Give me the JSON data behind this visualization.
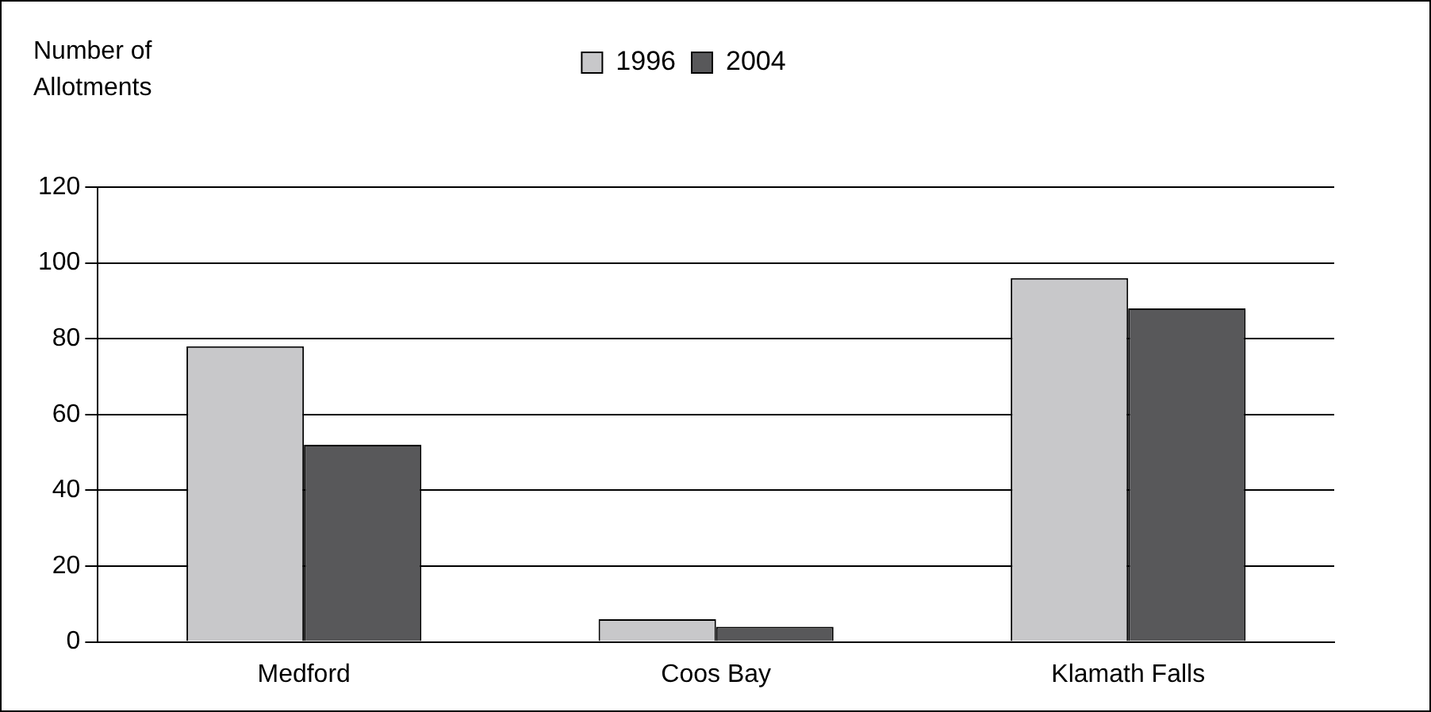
{
  "chart_data": {
    "type": "bar",
    "ylabel": "Number of Allotments",
    "categories": [
      "Medford",
      "Coos Bay",
      "Klamath Falls"
    ],
    "series": [
      {
        "name": "1996",
        "color": "#c8c8ca",
        "values": [
          78,
          6,
          96
        ]
      },
      {
        "name": "2004",
        "color": "#58585a",
        "values": [
          52,
          4,
          88
        ]
      }
    ],
    "ylim": [
      0,
      120
    ],
    "yticks": [
      0,
      20,
      40,
      60,
      80,
      100,
      120
    ],
    "grid": "y",
    "legend": "top"
  }
}
